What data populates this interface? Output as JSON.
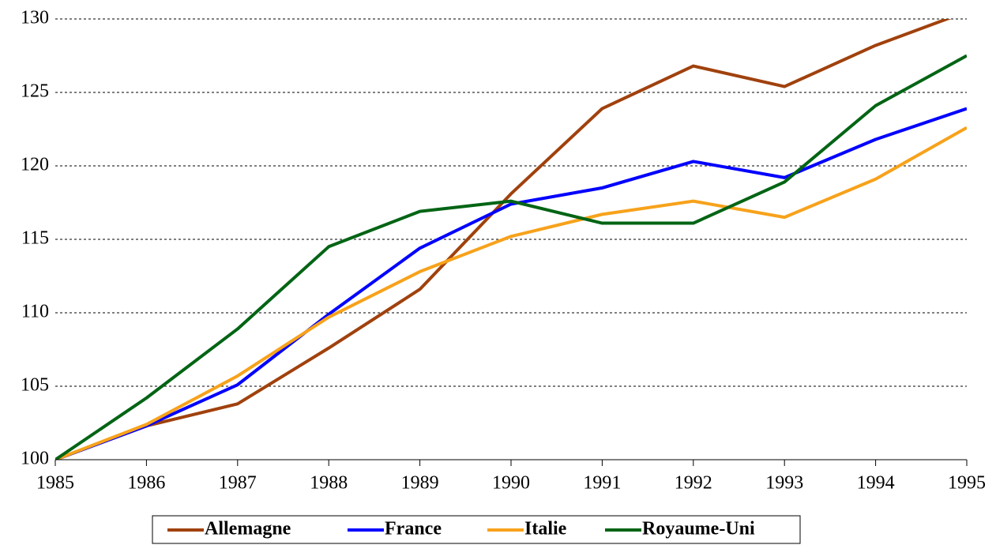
{
  "chart_data": {
    "type": "line",
    "x": [
      1985,
      1986,
      1987,
      1988,
      1989,
      1990,
      1991,
      1992,
      1993,
      1994,
      1995
    ],
    "series": [
      {
        "name": "Allemagne",
        "color": "#a0410d",
        "values": [
          100,
          102.3,
          103.8,
          107.6,
          111.6,
          118.1,
          123.9,
          126.8,
          125.4,
          128.2,
          130.5
        ]
      },
      {
        "name": "France",
        "color": "#0000ff",
        "values": [
          100,
          102.3,
          105.1,
          109.9,
          114.4,
          117.4,
          118.5,
          120.3,
          119.2,
          121.8,
          123.9
        ]
      },
      {
        "name": "Italie",
        "color": "#f7a21b",
        "values": [
          100,
          102.4,
          105.7,
          109.7,
          112.8,
          115.2,
          116.7,
          117.6,
          116.5,
          119.1,
          122.6
        ]
      },
      {
        "name": "Royaume-Uni",
        "color": "#006414",
        "values": [
          100,
          104.2,
          108.9,
          114.5,
          116.9,
          117.6,
          116.1,
          116.1,
          118.9,
          124.1,
          127.5
        ]
      }
    ],
    "xlim": [
      1985,
      1995
    ],
    "xticks": [
      1985,
      1986,
      1987,
      1988,
      1989,
      1990,
      1991,
      1992,
      1993,
      1994,
      1995
    ],
    "ylim": [
      100,
      130
    ],
    "yticks": [
      100,
      105,
      110,
      115,
      120,
      125,
      130
    ],
    "grid": true,
    "legend": "bottom"
  }
}
